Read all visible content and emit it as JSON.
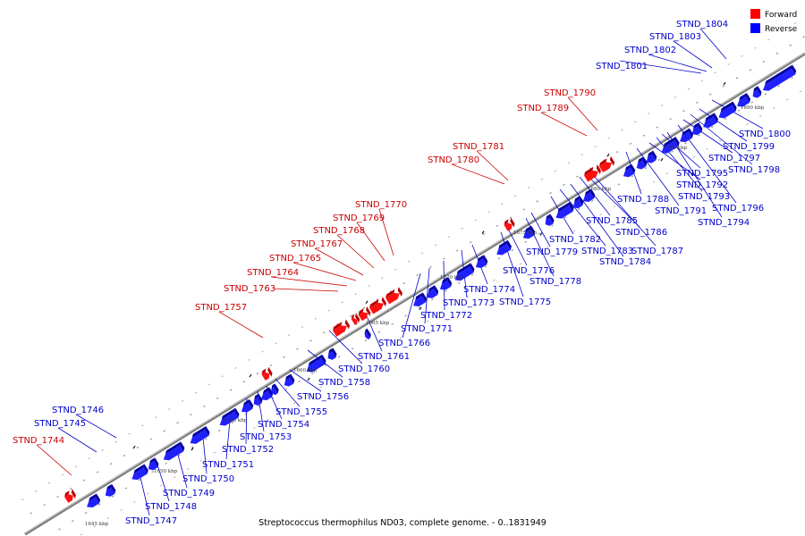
{
  "caption": "Streptococcus thermophilus ND03, complete genome. - 0..1831949",
  "legend": [
    {
      "label": "Forward",
      "color": "#ff0000"
    },
    {
      "label": "Reverse",
      "color": "#0000ff"
    }
  ],
  "colors": {
    "forward": "#ff1010",
    "forward_dark": "#b80000",
    "reverse": "#2020ff",
    "reverse_dark": "#0000a0",
    "backbone": "#888888"
  },
  "ticks": [
    "1645 kbp",
    "1650 kbp",
    "1655 kbp",
    "1660 kbp",
    "1665 kbp",
    "1670 kbp",
    "1675 kbp",
    "1680 kbp",
    "1685 kbp",
    "1690 kbp"
  ],
  "forward_genes": [
    "STND_1744",
    "STND_1757",
    "STND_1763",
    "STND_1764",
    "STND_1765",
    "STND_1767",
    "STND_1768",
    "STND_1769",
    "STND_1770",
    "STND_1780",
    "STND_1781",
    "STND_1789",
    "STND_1790"
  ],
  "reverse_genes": [
    "STND_1745",
    "STND_1746",
    "STND_1747",
    "STND_1748",
    "STND_1749",
    "STND_1750",
    "STND_1751",
    "STND_1752",
    "STND_1753",
    "STND_1754",
    "STND_1755",
    "STND_1756",
    "STND_1758",
    "STND_1760",
    "STND_1761",
    "STND_1766",
    "STND_1771",
    "STND_1772",
    "STND_1773",
    "STND_1774",
    "STND_1775",
    "STND_1776",
    "STND_1778",
    "STND_1779",
    "STND_1782",
    "STND_1783",
    "STND_1784",
    "STND_1785",
    "STND_1786",
    "STND_1787",
    "STND_1788",
    "STND_1791",
    "STND_1792",
    "STND_1793",
    "STND_1794",
    "STND_1795",
    "STND_1796",
    "STND_1797",
    "STND_1798",
    "STND_1799",
    "STND_1800",
    "STND_1801",
    "STND_1802",
    "STND_1803",
    "STND_1804"
  ]
}
